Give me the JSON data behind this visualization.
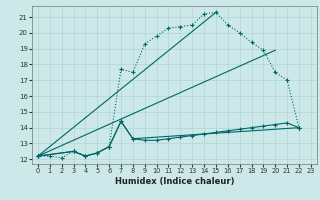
{
  "xlabel": "Humidex (Indice chaleur)",
  "bg_color": "#cce8e8",
  "line_color": "#006666",
  "grid_color": "#b0d4d4",
  "xlim": [
    -0.5,
    23.5
  ],
  "ylim": [
    11.7,
    21.7
  ],
  "xticks": [
    0,
    1,
    2,
    3,
    4,
    5,
    6,
    7,
    8,
    9,
    10,
    11,
    12,
    13,
    14,
    15,
    16,
    17,
    18,
    19,
    20,
    21,
    22,
    23
  ],
  "yticks": [
    12,
    13,
    14,
    15,
    16,
    17,
    18,
    19,
    20,
    21
  ],
  "curve1_x": [
    0,
    1,
    2,
    3,
    4,
    5,
    6,
    7,
    8,
    9,
    10,
    11,
    12,
    13,
    14,
    15,
    16,
    17,
    18,
    19,
    20,
    21,
    22
  ],
  "curve1_y": [
    12.2,
    12.2,
    12.1,
    12.5,
    12.2,
    12.4,
    12.8,
    17.7,
    17.5,
    19.3,
    19.8,
    20.3,
    20.4,
    20.5,
    21.2,
    21.3,
    20.5,
    20.0,
    19.4,
    18.9,
    17.5,
    17.0,
    14.0
  ],
  "curve2_x": [
    0,
    3,
    4,
    5,
    6,
    7,
    8,
    22
  ],
  "curve2_y": [
    12.2,
    12.5,
    12.2,
    12.4,
    12.8,
    14.4,
    13.3,
    14.0
  ],
  "curve3_x": [
    0,
    3,
    4,
    5,
    6,
    7,
    8,
    9,
    10,
    11,
    12,
    13,
    14,
    15,
    16,
    17,
    18,
    19,
    20,
    21,
    22
  ],
  "curve3_y": [
    12.2,
    12.5,
    12.2,
    12.4,
    12.8,
    14.4,
    13.3,
    13.2,
    13.2,
    13.3,
    13.4,
    13.5,
    13.6,
    13.7,
    13.8,
    13.9,
    14.0,
    14.1,
    14.2,
    14.3,
    14.0
  ],
  "line_straight1": [
    [
      0,
      15
    ],
    [
      12.2,
      21.3
    ]
  ],
  "line_straight2": [
    [
      0,
      20
    ],
    [
      12.2,
      18.9
    ]
  ]
}
